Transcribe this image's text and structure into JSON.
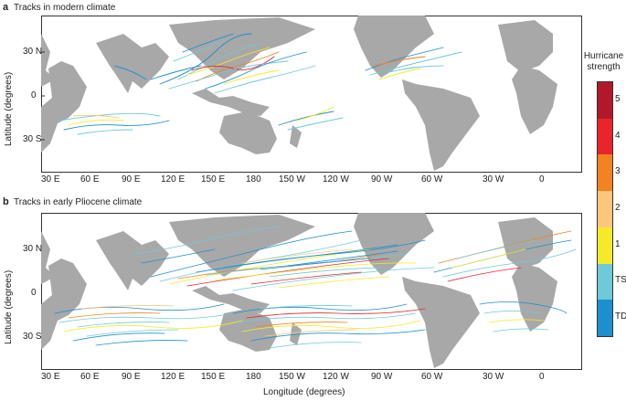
{
  "chart_data": [
    {
      "type": "map",
      "panel_letter": "a",
      "title": "Tracks in modern climate",
      "ylabel": "Latitude (degrees)",
      "y_ticks": [
        "30 N",
        "0",
        "30 S"
      ],
      "x_ticks": [
        "30 E",
        "60 E",
        "90 E",
        "120 E",
        "150 E",
        "180",
        "150 W",
        "120 W",
        "90 W",
        "60 W",
        "30 W",
        "0"
      ],
      "series_intensity": "Fewer tracks, concentrated in western Pacific, North Atlantic and south Indian/Pacific"
    },
    {
      "type": "map",
      "panel_letter": "b",
      "title": "Tracks in early Pliocene climate",
      "ylabel": "Latitude (degrees)",
      "xlabel": "Longitude (degrees)",
      "y_ticks": [
        "30 N",
        "0",
        "30 S"
      ],
      "x_ticks": [
        "30 E",
        "60 E",
        "90 E",
        "120 E",
        "150 E",
        "180",
        "150 W",
        "120 W",
        "90 W",
        "60 W",
        "30 W",
        "0"
      ],
      "series_intensity": "Dense tracks throughout tropical Pacific, Atlantic and Indian oceans"
    }
  ],
  "legend": {
    "title_line1": "Hurricane",
    "title_line2": "strength",
    "levels": [
      {
        "label": "5",
        "color": "#b2182b"
      },
      {
        "label": "4",
        "color": "#e8252a"
      },
      {
        "label": "3",
        "color": "#f58220"
      },
      {
        "label": "2",
        "color": "#fdc77a"
      },
      {
        "label": "1",
        "color": "#f5ea2a"
      },
      {
        "label": "TS",
        "color": "#6ec9d8"
      },
      {
        "label": "TD",
        "color": "#1d8fcf"
      }
    ]
  }
}
